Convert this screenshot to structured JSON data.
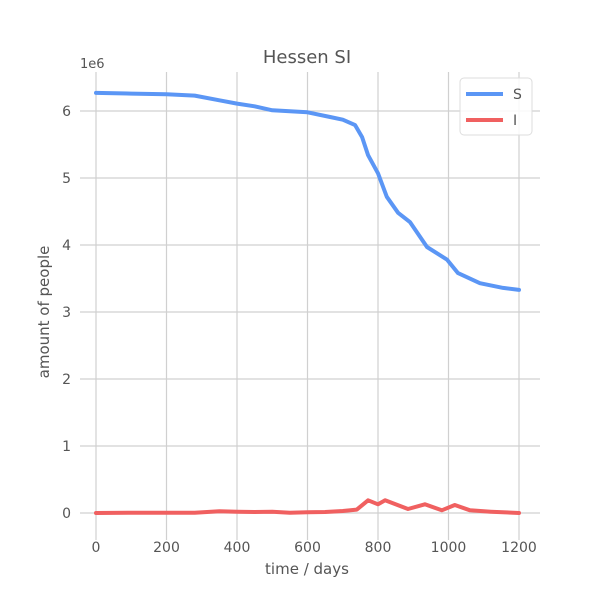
{
  "chart_data": {
    "type": "line",
    "title": "Hessen SI",
    "xlabel": "time / days",
    "ylabel": "amount of people",
    "y_offset_label": "1e6",
    "xlim": [
      -50,
      1250
    ],
    "ylim": [
      -0.4,
      6.75
    ],
    "xticks": [
      0,
      200,
      400,
      600,
      800,
      1000,
      1200
    ],
    "yticks": [
      0,
      1,
      2,
      3,
      4,
      5,
      6
    ],
    "grid": true,
    "legend_position": "top-right",
    "series": [
      {
        "name": "S",
        "color": "#5b96f5",
        "x": [
          0,
          100,
          200,
          280,
          350,
          400,
          450,
          500,
          600,
          664,
          700,
          735,
          755,
          772,
          800,
          825,
          857,
          891,
          939,
          996,
          1027,
          1089,
          1155,
          1200
        ],
        "y": [
          6.27,
          6.26,
          6.25,
          6.23,
          6.16,
          6.11,
          6.07,
          6.01,
          5.98,
          5.91,
          5.87,
          5.79,
          5.61,
          5.34,
          5.07,
          4.72,
          4.48,
          4.34,
          3.97,
          3.78,
          3.58,
          3.43,
          3.36,
          3.33
        ]
      },
      {
        "name": "I",
        "color": "#f06060",
        "x": [
          0,
          100,
          200,
          280,
          350,
          400,
          450,
          500,
          550,
          600,
          650,
          700,
          740,
          772,
          800,
          820,
          885,
          933,
          981,
          1018,
          1061,
          1120,
          1200
        ],
        "y": [
          0.0,
          0.005,
          0.003,
          0.005,
          0.025,
          0.02,
          0.015,
          0.02,
          0.005,
          0.01,
          0.015,
          0.03,
          0.05,
          0.19,
          0.13,
          0.19,
          0.06,
          0.13,
          0.04,
          0.12,
          0.04,
          0.02,
          0.0
        ]
      }
    ]
  }
}
